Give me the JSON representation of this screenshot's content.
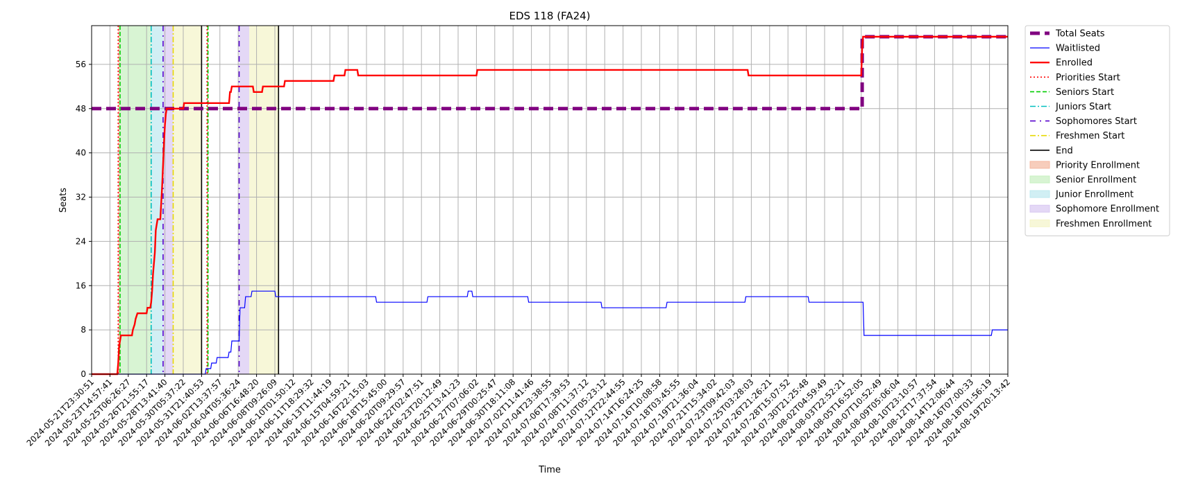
{
  "chart_data": {
    "type": "line",
    "title": "EDS 118 (FA24)",
    "xlabel": "Time",
    "ylabel": "Seats",
    "ylim": [
      0,
      63
    ],
    "yticks": [
      0,
      8,
      16,
      24,
      32,
      40,
      48,
      56
    ],
    "xlim": [
      "2024-05-21T23:30:51",
      "2024-08-19T20:13:42"
    ],
    "grid": true,
    "legend_position": "outside-top-right",
    "xtick_labels": [
      "2024-05-21T23:30:51",
      "2024-05-23T14:57:41",
      "2024-05-25T06:26:27",
      "2024-05-26T21:55:17",
      "2024-05-28T13:41:40",
      "2024-05-30T05:37:22",
      "2024-05-31T21:40:53",
      "2024-06-02T13:37:57",
      "2024-06-04T05:36:24",
      "2024-06-06T16:48:20",
      "2024-06-08T09:26:09",
      "2024-06-10T01:50:12",
      "2024-06-11T18:29:32",
      "2024-06-13T11:44:19",
      "2024-06-15T04:59:21",
      "2024-06-16T22:15:03",
      "2024-06-18T15:45:00",
      "2024-06-20T09:29:57",
      "2024-06-22T02:47:51",
      "2024-06-23T20:12:49",
      "2024-06-25T13:41:23",
      "2024-06-27T07:06:02",
      "2024-06-29T00:25:47",
      "2024-06-30T18:11:08",
      "2024-07-02T11:41:46",
      "2024-07-04T23:38:55",
      "2024-07-06T17:39:53",
      "2024-07-08T11:37:12",
      "2024-07-10T05:23:12",
      "2024-07-12T22:44:55",
      "2024-07-14T16:24:25",
      "2024-07-16T10:08:58",
      "2024-07-18T03:45:55",
      "2024-07-19T21:36:04",
      "2024-07-21T15:34:02",
      "2024-07-23T09:42:03",
      "2024-07-25T03:28:03",
      "2024-07-26T21:26:21",
      "2024-07-28T15:07:52",
      "2024-07-30T21:25:48",
      "2024-08-02T04:59:49",
      "2024-08-03T22:52:21",
      "2024-08-05T16:52:05",
      "2024-08-07T10:52:49",
      "2024-08-09T05:06:04",
      "2024-08-10T23:10:57",
      "2024-08-12T17:37:54",
      "2024-08-14T12:06:44",
      "2024-08-16T07:00:33",
      "2024-08-18T01:56:19",
      "2024-08-19T20:13:42"
    ],
    "series": [
      {
        "name": "Total Seats",
        "color": "#800080",
        "style": "dashed-thick",
        "points": [
          [
            0,
            48
          ],
          [
            42.05,
            48
          ],
          [
            42.05,
            61
          ],
          [
            50,
            61
          ]
        ]
      },
      {
        "name": "Waitlisted",
        "color": "#0000ff",
        "style": "step-thin",
        "points": [
          [
            0,
            0
          ],
          [
            6.2,
            0
          ],
          [
            6.25,
            1
          ],
          [
            6.5,
            1
          ],
          [
            6.55,
            2
          ],
          [
            6.8,
            2
          ],
          [
            6.85,
            3
          ],
          [
            7.45,
            3
          ],
          [
            7.5,
            4
          ],
          [
            7.6,
            4
          ],
          [
            7.65,
            6
          ],
          [
            8.05,
            6
          ],
          [
            8.1,
            12
          ],
          [
            8.35,
            12
          ],
          [
            8.4,
            14
          ],
          [
            8.7,
            14
          ],
          [
            8.75,
            15
          ],
          [
            10.0,
            15
          ],
          [
            10.05,
            14
          ],
          [
            15.5,
            14
          ],
          [
            15.55,
            13
          ],
          [
            18.3,
            13
          ],
          [
            18.35,
            14
          ],
          [
            20.5,
            14
          ],
          [
            20.55,
            15
          ],
          [
            20.75,
            15
          ],
          [
            20.8,
            14
          ],
          [
            23.8,
            14
          ],
          [
            23.85,
            13
          ],
          [
            27.8,
            13
          ],
          [
            27.85,
            12
          ],
          [
            31.35,
            12
          ],
          [
            31.4,
            13
          ],
          [
            35.65,
            13
          ],
          [
            35.7,
            14
          ],
          [
            39.1,
            14
          ],
          [
            39.15,
            13
          ],
          [
            42.1,
            13
          ],
          [
            42.15,
            7
          ],
          [
            49.1,
            7
          ],
          [
            49.15,
            8
          ],
          [
            50,
            8
          ]
        ]
      },
      {
        "name": "Enrolled",
        "color": "#ff0000",
        "style": "step-thick",
        "points": [
          [
            0,
            0
          ],
          [
            1.4,
            0
          ],
          [
            1.45,
            2
          ],
          [
            1.5,
            5
          ],
          [
            1.55,
            6
          ],
          [
            1.6,
            7
          ],
          [
            2.2,
            7
          ],
          [
            2.25,
            8
          ],
          [
            2.35,
            9
          ],
          [
            2.4,
            10
          ],
          [
            2.5,
            11
          ],
          [
            3.0,
            11
          ],
          [
            3.05,
            12
          ],
          [
            3.2,
            12
          ],
          [
            3.25,
            13
          ],
          [
            3.3,
            15
          ],
          [
            3.35,
            18
          ],
          [
            3.45,
            22
          ],
          [
            3.5,
            26
          ],
          [
            3.55,
            27
          ],
          [
            3.6,
            28
          ],
          [
            3.75,
            28
          ],
          [
            3.8,
            31
          ],
          [
            3.85,
            34
          ],
          [
            3.9,
            38
          ],
          [
            3.95,
            42
          ],
          [
            4.0,
            45
          ],
          [
            4.05,
            47
          ],
          [
            4.1,
            48
          ],
          [
            5.0,
            48
          ],
          [
            5.05,
            49
          ],
          [
            7.5,
            49
          ],
          [
            7.55,
            51
          ],
          [
            7.6,
            51
          ],
          [
            7.65,
            52
          ],
          [
            8.8,
            52
          ],
          [
            8.85,
            51
          ],
          [
            9.3,
            51
          ],
          [
            9.35,
            52
          ],
          [
            10.5,
            52
          ],
          [
            10.55,
            53
          ],
          [
            13.2,
            53
          ],
          [
            13.25,
            54
          ],
          [
            13.8,
            54
          ],
          [
            13.85,
            55
          ],
          [
            14.5,
            55
          ],
          [
            14.55,
            54
          ],
          [
            21.0,
            54
          ],
          [
            21.05,
            55
          ],
          [
            35.8,
            55
          ],
          [
            35.85,
            54
          ],
          [
            42.0,
            54
          ],
          [
            42.05,
            59
          ],
          [
            42.1,
            61
          ],
          [
            50,
            61
          ]
        ]
      }
    ],
    "markers": [
      {
        "name": "Priorities Start",
        "x": 1.45,
        "color": "#ff0000",
        "style": "dotted"
      },
      {
        "name": "Seniors Start",
        "x": 1.55,
        "color": "#00cc00",
        "style": "dashed"
      },
      {
        "name": "Juniors Start",
        "x": 3.25,
        "color": "#00bfbf",
        "style": "dashdot"
      },
      {
        "name": "Sophomores Start",
        "x": 3.9,
        "color": "#5500cc",
        "style": "dashdot-sparse"
      },
      {
        "name": "Freshmen Start",
        "x": 4.45,
        "color": "#e6d800",
        "style": "dashdot"
      },
      {
        "name": "End",
        "x": 6.0,
        "color": "#000000",
        "style": "solid"
      },
      {
        "name": "Priorities Start",
        "x": 6.3,
        "color": "#ff0000",
        "style": "dotted"
      },
      {
        "name": "Seniors Start",
        "x": 6.35,
        "color": "#00cc00",
        "style": "dashed"
      },
      {
        "name": "Sophomores Start",
        "x": 8.05,
        "color": "#5500cc",
        "style": "dashdot-sparse"
      },
      {
        "name": "End",
        "x": 10.2,
        "color": "#000000",
        "style": "solid"
      }
    ],
    "spans": [
      {
        "name": "Priority Enrollment",
        "x0": 1.45,
        "x1": 1.55,
        "color": "#f4b8a0"
      },
      {
        "name": "Senior Enrollment",
        "x0": 1.55,
        "x1": 3.25,
        "color": "#c8f0c0"
      },
      {
        "name": "Junior Enrollment",
        "x0": 3.25,
        "x1": 3.9,
        "color": "#bde8ef"
      },
      {
        "name": "Sophomore Enrollment",
        "x0": 3.9,
        "x1": 4.45,
        "color": "#d8c8f2"
      },
      {
        "name": "Freshmen Enrollment",
        "x0": 4.45,
        "x1": 6.0,
        "color": "#f4f4c8"
      },
      {
        "name": "Priority Enrollment",
        "x0": 6.3,
        "x1": 6.35,
        "color": "#f4b8a0"
      },
      {
        "name": "Sophomore Enrollment",
        "x0": 8.05,
        "x1": 8.6,
        "color": "#d8c8f2"
      },
      {
        "name": "Freshmen Enrollment",
        "x0": 8.6,
        "x1": 10.2,
        "color": "#f4f4c8"
      }
    ],
    "legend": [
      {
        "label": "Total Seats",
        "kind": "line",
        "color": "#800080",
        "style": "dashed-thick"
      },
      {
        "label": "Waitlisted",
        "kind": "line",
        "color": "#0000ff",
        "style": "solid-thin"
      },
      {
        "label": "Enrolled",
        "kind": "line",
        "color": "#ff0000",
        "style": "solid-thick"
      },
      {
        "label": "Priorities Start",
        "kind": "line",
        "color": "#ff0000",
        "style": "dotted"
      },
      {
        "label": "Seniors Start",
        "kind": "line",
        "color": "#00cc00",
        "style": "dashed"
      },
      {
        "label": "Juniors Start",
        "kind": "line",
        "color": "#00bfbf",
        "style": "dashdot"
      },
      {
        "label": "Sophomores Start",
        "kind": "line",
        "color": "#5500cc",
        "style": "dashdot-sparse"
      },
      {
        "label": "Freshmen Start",
        "kind": "line",
        "color": "#e6d800",
        "style": "dashdot"
      },
      {
        "label": "End",
        "kind": "line",
        "color": "#000000",
        "style": "solid"
      },
      {
        "label": "Priority Enrollment",
        "kind": "patch",
        "color": "#f4b8a0"
      },
      {
        "label": "Senior Enrollment",
        "kind": "patch",
        "color": "#c8f0c0"
      },
      {
        "label": "Junior Enrollment",
        "kind": "patch",
        "color": "#bde8ef"
      },
      {
        "label": "Sophomore Enrollment",
        "kind": "patch",
        "color": "#d8c8f2"
      },
      {
        "label": "Freshmen Enrollment",
        "kind": "patch",
        "color": "#f4f4c8"
      }
    ]
  }
}
